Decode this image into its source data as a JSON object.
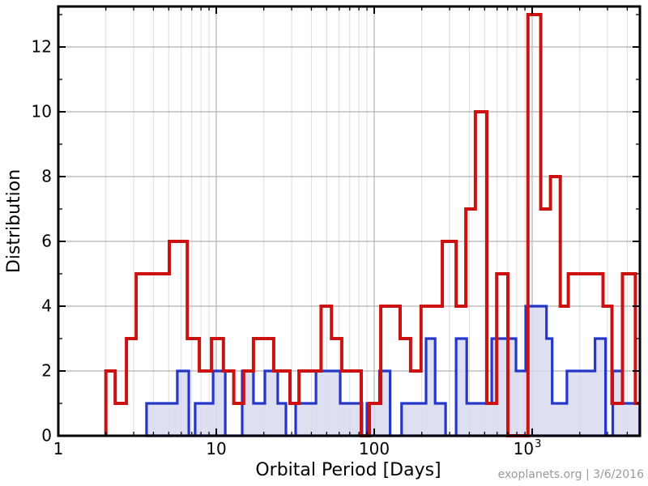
{
  "watermark": "exoplanets.org | 3/6/2016",
  "axes": {
    "x": {
      "label": "Orbital Period [Days]",
      "scale": "log",
      "min": 1,
      "max": 4800,
      "tick_labels": [
        "1",
        "10",
        "100"
      ],
      "last_tick": {
        "base": "10",
        "exp": "3"
      }
    },
    "y": {
      "label": "Distribution",
      "min": 0,
      "max": 13.25,
      "tick_labels": [
        "0",
        "2",
        "4",
        "6",
        "8",
        "10",
        "12"
      ]
    }
  },
  "grid": {
    "x_minor": [
      2,
      3,
      4,
      5,
      6,
      7,
      8,
      9,
      20,
      30,
      40,
      50,
      60,
      70,
      80,
      90,
      200,
      300,
      400,
      500,
      600,
      700,
      800,
      900,
      2000,
      3000,
      4000
    ],
    "x_major": [
      10,
      100,
      1000
    ],
    "y_major": [
      2,
      4,
      6,
      8,
      10,
      12
    ],
    "y_minor": [
      1,
      3,
      5,
      7,
      9,
      11,
      13
    ],
    "minor_color": "#dcdcdc",
    "major_color": "#b4b4b4"
  },
  "chart_data": {
    "type": "step-histogram",
    "title": "",
    "xlabel": "Orbital Period [Days]",
    "ylabel": "Distribution",
    "x_scale": "log",
    "xlim": [
      1,
      4800
    ],
    "ylim": [
      0,
      13.25
    ],
    "grid": true,
    "legend": "none",
    "series": [
      {
        "name": "red-distribution",
        "color": "#cc1111",
        "fill": "none",
        "line_width": 4,
        "end_x": 4800,
        "steps": [
          [
            2.0,
            2
          ],
          [
            2.29,
            1
          ],
          [
            2.7,
            3
          ],
          [
            3.11,
            5
          ],
          [
            5.04,
            6
          ],
          [
            6.55,
            3
          ],
          [
            7.81,
            2
          ],
          [
            9.33,
            3
          ],
          [
            11.1,
            2
          ],
          [
            12.9,
            1
          ],
          [
            14.9,
            2
          ],
          [
            17.2,
            3
          ],
          [
            23.1,
            2
          ],
          [
            29.3,
            1
          ],
          [
            33.4,
            2
          ],
          [
            46.1,
            4
          ],
          [
            53.6,
            3
          ],
          [
            62.3,
            2
          ],
          [
            82.8,
            0
          ],
          [
            93.3,
            1
          ],
          [
            110,
            4
          ],
          [
            146,
            3
          ],
          [
            170,
            2
          ],
          [
            198,
            4
          ],
          [
            270,
            6
          ],
          [
            330,
            4
          ],
          [
            380,
            7
          ],
          [
            437,
            10
          ],
          [
            516,
            1
          ],
          [
            596,
            5
          ],
          [
            702,
            0
          ],
          [
            941,
            13
          ],
          [
            1133,
            7
          ],
          [
            1306,
            8
          ],
          [
            1507,
            4
          ],
          [
            1694,
            5
          ],
          [
            2811,
            4
          ],
          [
            3199,
            1
          ],
          [
            3730,
            5
          ],
          [
            4502,
            1
          ]
        ]
      },
      {
        "name": "blue-distribution",
        "color": "#2636c9",
        "fill": "#d8daf0",
        "fill_opacity": 0.85,
        "line_width": 3.2,
        "end_x": 4800,
        "steps": [
          [
            3.62,
            1
          ],
          [
            5.67,
            2
          ],
          [
            6.7,
            0
          ],
          [
            7.35,
            1
          ],
          [
            9.55,
            2
          ],
          [
            11.4,
            0
          ],
          [
            14.6,
            2
          ],
          [
            17.2,
            1
          ],
          [
            20.3,
            2
          ],
          [
            24.5,
            1
          ],
          [
            27.6,
            0
          ],
          [
            31.8,
            1
          ],
          [
            42.8,
            2
          ],
          [
            60.9,
            1
          ],
          [
            83.7,
            0
          ],
          [
            89.9,
            1
          ],
          [
            108,
            2
          ],
          [
            126,
            0
          ],
          [
            149,
            1
          ],
          [
            213,
            3
          ],
          [
            243,
            1
          ],
          [
            283,
            0
          ],
          [
            330,
            3
          ],
          [
            385,
            1
          ],
          [
            555,
            3
          ],
          [
            790,
            2
          ],
          [
            910,
            4
          ],
          [
            1233,
            3
          ],
          [
            1339,
            1
          ],
          [
            1660,
            2
          ],
          [
            2500,
            3
          ],
          [
            2914,
            0
          ],
          [
            3237,
            2
          ],
          [
            3730,
            1
          ]
        ]
      }
    ]
  }
}
